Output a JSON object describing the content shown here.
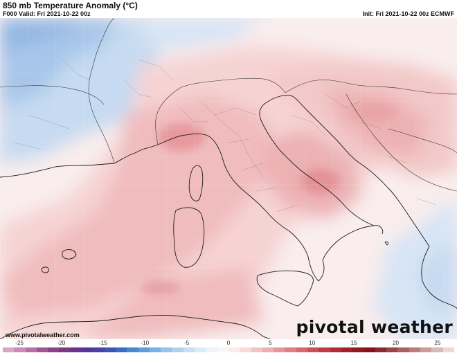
{
  "header": {
    "title": "850 mb Temperature Anomaly (°C)",
    "valid": "F000 Valid: Fri 2021-10-22 00z",
    "init": "Init: Fri 2021-10-22 00z ECMWF"
  },
  "map": {
    "region": "Western Mediterranean / Italy",
    "field": "850 mb temperature anomaly"
  },
  "watermark": {
    "brand": "pivotal weather",
    "url": "www.pivotalweather.com"
  },
  "colorbar": {
    "ticks": [
      "-25",
      "-20",
      "-15",
      "-10",
      "-5",
      "0",
      "5",
      "10",
      "15",
      "20",
      "25"
    ],
    "min": -27,
    "max": 27,
    "colors": [
      "#d5a7c4",
      "#c98cb8",
      "#b86fa7",
      "#a25696",
      "#8b4386",
      "#7a3a82",
      "#68358a",
      "#553597",
      "#4842a4",
      "#3c55b4",
      "#3b6cc3",
      "#4a86d1",
      "#5e9cda",
      "#7bb0e2",
      "#97c2e9",
      "#b1d2ef",
      "#c9e0f4",
      "#dcebf8",
      "#ebf3fb",
      "#f7f7f7",
      "#fbebeb",
      "#f8d9d9",
      "#f3c3c4",
      "#eeadb0",
      "#e8969a",
      "#e07f84",
      "#d7686d",
      "#cd5157",
      "#c23b42",
      "#b62b33",
      "#a61e28",
      "#951620",
      "#84111b",
      "#8a2a2f",
      "#9a4444",
      "#aa6060",
      "#bb7c7c",
      "#cc9a9a",
      "#dcb8b8",
      "#ecd6d6"
    ]
  }
}
